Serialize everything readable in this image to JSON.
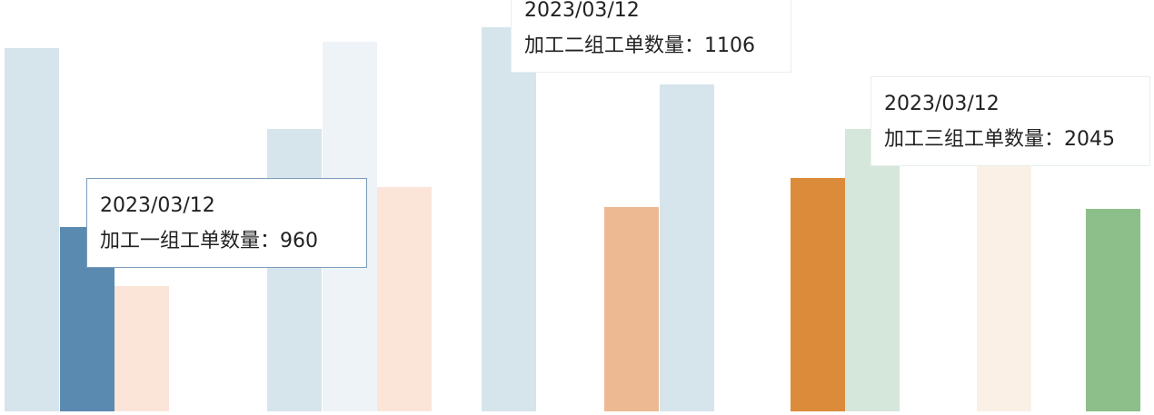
{
  "chart_data": {
    "type": "bar",
    "title": "",
    "xlabel": "",
    "ylabel": "",
    "bars": [
      {
        "value": 1892,
        "color": "#d6e4ec"
      },
      {
        "value": 960,
        "color": "#5b8ab0"
      },
      {
        "value": 653,
        "color": "#fbe5d8"
      },
      {
        "value": 1471,
        "color": "#d6e4ec"
      },
      {
        "value": 1925,
        "color": "#eef3f8"
      },
      {
        "value": 1168,
        "color": "#fbe5d8"
      },
      {
        "value": 2000,
        "color": "#d6e4ec"
      },
      {
        "value": 1064,
        "color": "#ecb992"
      },
      {
        "value": 1702,
        "color": "#d6e4ec"
      },
      {
        "value": 1215,
        "color": "#db8b3a"
      },
      {
        "value": 1471,
        "color": "#d5e6da"
      },
      {
        "value": 1400,
        "color": "#faf0e6"
      },
      {
        "value": 1055,
        "color": "#8dbf8a"
      }
    ],
    "tooltips": [
      {
        "date": "2023/03/12",
        "label": "加工一组工单数量：960",
        "border": "#7c9cbd"
      },
      {
        "date": "2023/03/12",
        "label": "加工二组工单数量：1106",
        "border": "#e8eef3"
      },
      {
        "date": "2023/03/12",
        "label": "加工三组工单数量：2045",
        "border": "#e6efe8"
      }
    ]
  }
}
